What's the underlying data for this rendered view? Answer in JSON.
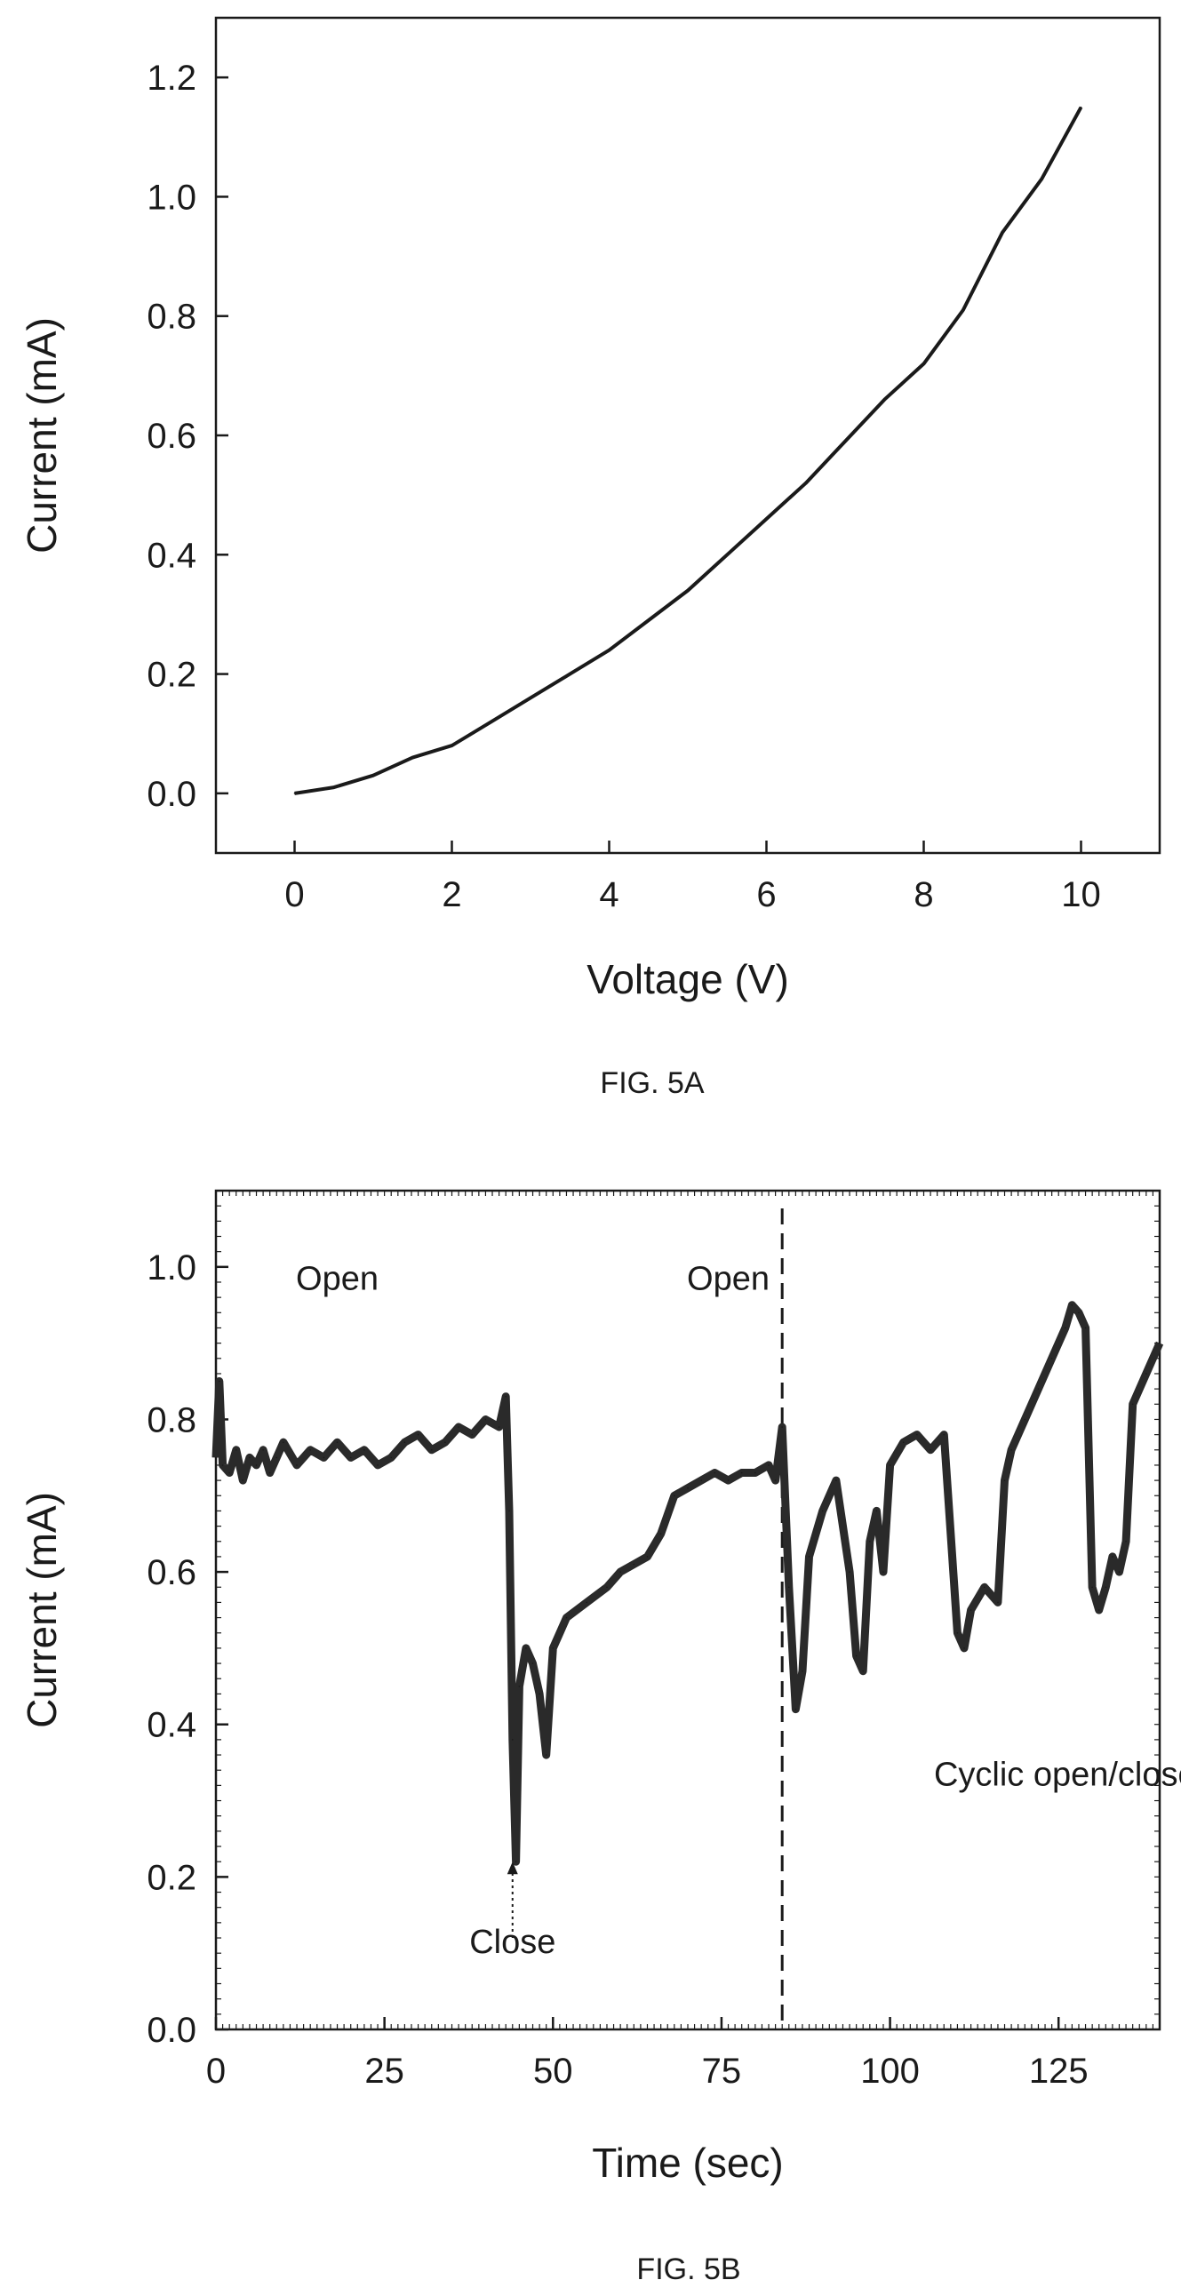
{
  "chart_data": [
    {
      "id": "fig5a",
      "type": "line",
      "caption": "FIG. 5A",
      "xlabel": "Voltage (V)",
      "ylabel": "Current (mA)",
      "xlim": [
        -1,
        11
      ],
      "ylim": [
        -0.1,
        1.3
      ],
      "xticks": [
        0,
        2,
        4,
        6,
        8,
        10
      ],
      "xtick_labels": [
        "0",
        "2",
        "4",
        "6",
        "8",
        "10"
      ],
      "yticks": [
        0.0,
        0.2,
        0.4,
        0.6,
        0.8,
        1.0,
        1.2
      ],
      "ytick_labels": [
        "0.0",
        "0.2",
        "0.4",
        "0.6",
        "0.8",
        "1.0",
        "1.2"
      ],
      "grid": false,
      "series": [
        {
          "x": [
            0,
            0.5,
            1,
            1.5,
            2,
            2.5,
            3,
            3.5,
            4,
            4.5,
            5,
            5.5,
            6,
            6.5,
            7,
            7.5,
            8,
            8.5,
            9,
            9.5,
            10
          ],
          "y": [
            0.0,
            0.01,
            0.03,
            0.06,
            0.08,
            0.12,
            0.16,
            0.2,
            0.24,
            0.29,
            0.34,
            0.4,
            0.46,
            0.52,
            0.59,
            0.66,
            0.72,
            0.81,
            0.94,
            1.03,
            1.15
          ]
        }
      ]
    },
    {
      "id": "fig5b",
      "type": "line",
      "caption": "FIG. 5B",
      "xlabel": "Time (sec)",
      "ylabel": "Current (mA)",
      "xlim": [
        0,
        140
      ],
      "ylim": [
        0.0,
        1.1
      ],
      "xticks": [
        0,
        25,
        50,
        75,
        100,
        125
      ],
      "xtick_labels": [
        "0",
        "25",
        "50",
        "75",
        "100",
        "125"
      ],
      "yticks": [
        0.0,
        0.2,
        0.4,
        0.6,
        0.8,
        1.0
      ],
      "ytick_labels": [
        "0.0",
        "0.2",
        "0.4",
        "0.6",
        "0.8",
        "1.0"
      ],
      "grid": false,
      "vline_x": 84,
      "annotations": [
        {
          "text": "Open",
          "x": 18,
          "y": 0.97
        },
        {
          "text": "Open",
          "x": 76,
          "y": 0.97
        },
        {
          "text": "Cyclic open/close",
          "x": 126,
          "y": 0.32
        },
        {
          "text": "Close",
          "x": 44,
          "y": 0.1
        }
      ],
      "arrow": {
        "x": 44,
        "from_y": 0.12,
        "to_y": 0.22
      },
      "series": [
        {
          "x": [
            0,
            0.5,
            1,
            2,
            3,
            4,
            5,
            6,
            7,
            8,
            9,
            10,
            12,
            14,
            16,
            18,
            20,
            22,
            24,
            26,
            28,
            30,
            32,
            34,
            36,
            38,
            40,
            42,
            43,
            43.5,
            44,
            44.5,
            45,
            46,
            47,
            48,
            49,
            50,
            52,
            55,
            58,
            60,
            62,
            64,
            66,
            68,
            70,
            72,
            74,
            76,
            78,
            80,
            82,
            83,
            84,
            85,
            86,
            87,
            88,
            90,
            92,
            94,
            95,
            96,
            97,
            98,
            99,
            100,
            102,
            104,
            106,
            108,
            110,
            111,
            112,
            114,
            116,
            117,
            118,
            120,
            122,
            124,
            126,
            127,
            128,
            129,
            130,
            131,
            132,
            133,
            134,
            135,
            136,
            138,
            140
          ],
          "y": [
            0.75,
            0.85,
            0.74,
            0.73,
            0.76,
            0.72,
            0.75,
            0.74,
            0.76,
            0.73,
            0.75,
            0.77,
            0.74,
            0.76,
            0.75,
            0.77,
            0.75,
            0.76,
            0.74,
            0.75,
            0.77,
            0.78,
            0.76,
            0.77,
            0.79,
            0.78,
            0.8,
            0.79,
            0.83,
            0.68,
            0.38,
            0.22,
            0.45,
            0.5,
            0.48,
            0.44,
            0.36,
            0.5,
            0.54,
            0.56,
            0.58,
            0.6,
            0.61,
            0.62,
            0.65,
            0.7,
            0.71,
            0.72,
            0.73,
            0.72,
            0.73,
            0.73,
            0.74,
            0.72,
            0.79,
            0.58,
            0.42,
            0.47,
            0.62,
            0.68,
            0.72,
            0.6,
            0.49,
            0.47,
            0.64,
            0.68,
            0.6,
            0.74,
            0.77,
            0.78,
            0.76,
            0.78,
            0.52,
            0.5,
            0.55,
            0.58,
            0.56,
            0.72,
            0.76,
            0.8,
            0.84,
            0.88,
            0.92,
            0.95,
            0.94,
            0.92,
            0.58,
            0.55,
            0.58,
            0.62,
            0.6,
            0.64,
            0.82,
            0.86,
            0.9
          ]
        }
      ]
    }
  ]
}
